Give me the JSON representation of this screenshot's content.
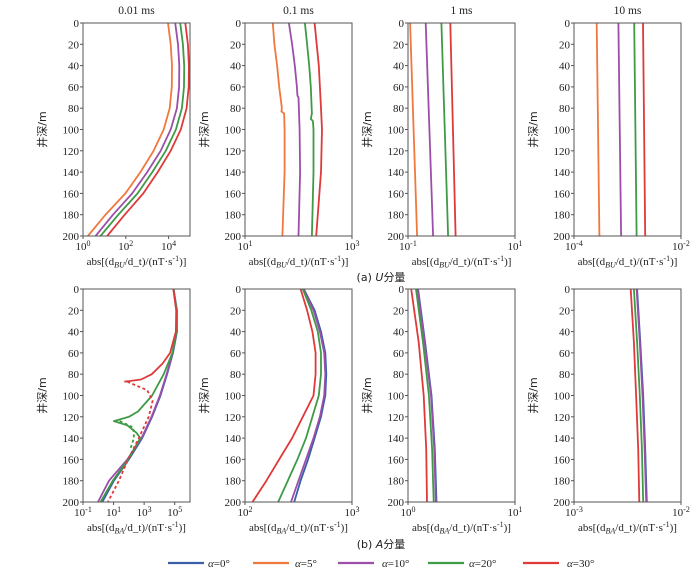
{
  "chart_data": {
    "type": "line",
    "captions": [
      "(a) _U_分量",
      "(b) _A_分量"
    ],
    "ylabel": "井深/m",
    "y_ticks": [
      "0",
      "20",
      "40",
      "60",
      "80",
      "100",
      "120",
      "140",
      "160",
      "180",
      "200"
    ],
    "ylim": [
      200,
      0
    ],
    "x_scale": "log",
    "legend": {
      "placement": "bottom-center",
      "entries": [
        {
          "key": "a0",
          "label": "α=0°"
        },
        {
          "key": "a5",
          "label": "α=5°"
        },
        {
          "key": "a10",
          "label": "α=10°"
        },
        {
          "key": "a20",
          "label": "α=20°"
        },
        {
          "key": "a30",
          "label": "α=30°"
        }
      ]
    },
    "colors": {
      "a0": "#3a5fa8",
      "a5": "#f0783c",
      "a10": "#9b4fa8",
      "a20": "#3f9a47",
      "a30": "#e0393a"
    },
    "panels": [
      {
        "id": "u-0.01",
        "row": 0,
        "col": 0,
        "title": "0.01 ms",
        "xlabel": "abs[(d_{BU}/d_t)/(nT·s^{-1})]",
        "xlim_log10": [
          0,
          5
        ],
        "x_ticks": [
          "10^{0}",
          "10^{2}",
          "10^{4}"
        ],
        "x_tick_log10": [
          0,
          2,
          4
        ],
        "series": [
          {
            "key": "a5",
            "depth": [
              0,
              20,
              40,
              60,
              80,
              100,
              120,
              140,
              160,
              180,
              200
            ],
            "log10": [
              3.97,
              4.1,
              4.16,
              4.15,
              4.05,
              3.77,
              3.3,
              2.68,
              1.98,
              1.05,
              0.23
            ]
          },
          {
            "key": "a10",
            "depth": [
              0,
              20,
              40,
              60,
              80,
              100,
              120,
              140,
              160,
              180,
              200
            ],
            "log10": [
              4.31,
              4.44,
              4.5,
              4.49,
              4.39,
              4.1,
              3.63,
              3.0,
              2.3,
              1.4,
              0.59
            ]
          },
          {
            "key": "a20",
            "depth": [
              0,
              20,
              40,
              60,
              80,
              100,
              120,
              140,
              160,
              180,
              200
            ],
            "log10": [
              4.54,
              4.67,
              4.73,
              4.72,
              4.62,
              4.34,
              3.87,
              3.24,
              2.55,
              1.65,
              0.82
            ]
          },
          {
            "key": "a30",
            "depth": [
              0,
              20,
              40,
              60,
              80,
              100,
              120,
              140,
              160,
              180,
              200
            ],
            "log10": [
              4.78,
              4.9,
              4.95,
              4.94,
              4.84,
              4.57,
              4.1,
              3.49,
              2.82,
              1.95,
              1.13
            ]
          }
        ]
      },
      {
        "id": "u-0.1",
        "row": 0,
        "col": 1,
        "title": "0.1 ms",
        "xlabel": "abs[(d_{BU}/d_t)/(nT·s^{-1})]",
        "xlim_log10": [
          1,
          3
        ],
        "x_ticks": [
          "10^{1}",
          "10^{3}"
        ],
        "x_tick_log10": [
          1,
          3
        ],
        "series": [
          {
            "key": "a5",
            "depth": [
              0,
              20,
              40,
              60,
              80,
              83,
              85,
              100,
              140,
              200
            ],
            "log10": [
              1.52,
              1.55,
              1.6,
              1.64,
              1.69,
              1.68,
              1.73,
              1.74,
              1.74,
              1.7
            ]
          },
          {
            "key": "a10",
            "depth": [
              0,
              20,
              40,
              60,
              68,
              70,
              100,
              140,
              200
            ],
            "log10": [
              1.82,
              1.88,
              1.93,
              1.97,
              1.98,
              2.0,
              2.02,
              2.03,
              2.0
            ]
          },
          {
            "key": "a20",
            "depth": [
              0,
              20,
              40,
              60,
              85,
              90,
              92,
              100,
              140,
              200
            ],
            "log10": [
              2.12,
              2.16,
              2.2,
              2.23,
              2.25,
              2.23,
              2.27,
              2.28,
              2.28,
              2.25
            ]
          },
          {
            "key": "a30",
            "depth": [
              0,
              20,
              40,
              60,
              80,
              100,
              140,
              200
            ],
            "log10": [
              2.3,
              2.34,
              2.38,
              2.4,
              2.42,
              2.44,
              2.42,
              2.33
            ]
          }
        ]
      },
      {
        "id": "u-1",
        "row": 0,
        "col": 2,
        "title": "1 ms",
        "xlabel": "abs[(d_{BU}/d_t)/(nT·s^{-1})]",
        "xlim_log10": [
          -1,
          1
        ],
        "x_ticks": [
          "10^{-1}",
          "10^{1}"
        ],
        "x_tick_log10": [
          -1,
          1
        ],
        "series": [
          {
            "key": "a5",
            "depth": [
              0,
              200
            ],
            "log10": [
              -0.96,
              -0.83
            ]
          },
          {
            "key": "a10",
            "depth": [
              0,
              200
            ],
            "log10": [
              -0.67,
              -0.53
            ]
          },
          {
            "key": "a20",
            "depth": [
              0,
              200
            ],
            "log10": [
              -0.375,
              -0.25
            ]
          },
          {
            "key": "a30",
            "depth": [
              0,
              200
            ],
            "log10": [
              -0.21,
              -0.11
            ]
          }
        ]
      },
      {
        "id": "u-10",
        "row": 0,
        "col": 3,
        "title": "10 ms",
        "xlabel": "abs[(d_{BU}/d_t)/(nT·s^{-1})]",
        "xlim_log10": [
          -4,
          -2
        ],
        "x_ticks": [
          "10^{-4}",
          "10^{-2}"
        ],
        "x_tick_log10": [
          -4,
          -2
        ],
        "series": [
          {
            "key": "a5",
            "depth": [
              0,
              200
            ],
            "log10": [
              -3.575,
              -3.525
            ]
          },
          {
            "key": "a10",
            "depth": [
              0,
              200
            ],
            "log10": [
              -3.17,
              -3.12
            ]
          },
          {
            "key": "a20",
            "depth": [
              0,
              200
            ],
            "log10": [
              -2.875,
              -2.83
            ]
          },
          {
            "key": "a30",
            "depth": [
              0,
              200
            ],
            "log10": [
              -2.71,
              -2.67
            ]
          }
        ]
      },
      {
        "id": "a-0.01",
        "row": 1,
        "col": 0,
        "title": "",
        "xlabel": "abs[(d_{BA}/d_t)/(nT·s^{-1})]",
        "xlim_log10": [
          -1,
          6
        ],
        "x_ticks": [
          "10^{-1}",
          "10^{1}",
          "10^{3}",
          "10^{5}"
        ],
        "x_tick_log10": [
          -1,
          1,
          3,
          5
        ],
        "series": [
          {
            "key": "a0",
            "depth": [
              0,
              20,
              40,
              60,
              80,
              100,
              120,
              140,
              160,
              180,
              200
            ],
            "log10": [
              4.93,
              5.15,
              5.15,
              4.89,
              4.5,
              4.07,
              3.52,
              2.87,
              2.0,
              1.02,
              0.26
            ]
          },
          {
            "key": "a10",
            "depth": [
              0,
              20,
              40,
              60,
              80,
              100,
              120,
              140,
              160,
              180,
              200
            ],
            "log10": [
              4.92,
              5.13,
              5.12,
              4.86,
              4.47,
              4.03,
              3.48,
              2.83,
              1.9,
              0.7,
              -0.02
            ]
          },
          {
            "key": "a20",
            "depth": [
              0,
              20,
              40,
              60,
              80,
              100,
              115,
              120,
              124,
              128,
              135,
              140,
              160,
              180,
              200
            ],
            "log10": [
              4.92,
              5.13,
              5.12,
              4.85,
              4.28,
              3.52,
              2.6,
              2.0,
              1.02,
              1.9,
              2.5,
              2.75,
              1.95,
              0.95,
              0.15
            ]
          },
          {
            "key": "a20",
            "dashed": true,
            "depth": [
              124,
              130,
              140,
              150
            ],
            "log10": [
              1.4,
              2.3,
              2.33,
              2.1
            ]
          },
          {
            "key": "a30",
            "depth": [
              0,
              20,
              40,
              60,
              70,
              80,
              85,
              87
            ],
            "log10": [
              4.91,
              5.1,
              5.08,
              4.7,
              4.2,
              3.5,
              2.8,
              1.7
            ]
          },
          {
            "key": "a30",
            "dashed": true,
            "depth": [
              87,
              95,
              105,
              120,
              140,
              160,
              180,
              200
            ],
            "log10": [
              1.9,
              3.2,
              3.55,
              3.3,
              2.65,
              1.95,
              1.35,
              0.63
            ]
          }
        ]
      },
      {
        "id": "a-0.1",
        "row": 1,
        "col": 1,
        "title": "",
        "xlabel": "abs[(d_{BA}/d_t)/(nT·s^{-1})]",
        "xlim_log10": [
          2,
          3
        ],
        "x_ticks": [
          "10^{2}",
          "10^{3}"
        ],
        "x_tick_log10": [
          2,
          3
        ],
        "series": [
          {
            "key": "a0",
            "depth": [
              0,
              20,
              40,
              60,
              80,
              100,
              120,
              140,
              160,
              180,
              200
            ],
            "log10": [
              2.55,
              2.65,
              2.71,
              2.75,
              2.76,
              2.75,
              2.71,
              2.65,
              2.59,
              2.52,
              2.46
            ]
          },
          {
            "key": "a10",
            "depth": [
              0,
              20,
              40,
              60,
              80,
              100,
              120,
              140,
              160,
              180,
              200
            ],
            "log10": [
              2.545,
              2.64,
              2.7,
              2.74,
              2.75,
              2.74,
              2.7,
              2.64,
              2.57,
              2.5,
              2.43
            ]
          },
          {
            "key": "a20",
            "depth": [
              0,
              20,
              40,
              60,
              80,
              100,
              120,
              140,
              160,
              180,
              200
            ],
            "log10": [
              2.54,
              2.62,
              2.68,
              2.71,
              2.71,
              2.69,
              2.63,
              2.57,
              2.49,
              2.4,
              2.31
            ]
          },
          {
            "key": "a30",
            "depth": [
              0,
              20,
              40,
              60,
              80,
              100,
              120,
              140,
              160,
              180,
              200
            ],
            "log10": [
              2.52,
              2.58,
              2.63,
              2.66,
              2.66,
              2.64,
              2.54,
              2.44,
              2.32,
              2.2,
              2.07
            ]
          }
        ]
      },
      {
        "id": "a-1",
        "row": 1,
        "col": 2,
        "title": "",
        "xlabel": "abs[(d_{BA}/d_t)/(nT·s^{-1})]",
        "xlim_log10": [
          0,
          1
        ],
        "x_ticks": [
          "10^{0}",
          "10^{1}"
        ],
        "x_tick_log10": [
          0,
          1
        ],
        "series": [
          {
            "key": "a0",
            "depth": [
              0,
              50,
              100,
              150,
              200
            ],
            "log10": [
              0.094,
              0.16,
              0.22,
              0.25,
              0.266
            ]
          },
          {
            "key": "a10",
            "depth": [
              0,
              50,
              100,
              150,
              200
            ],
            "log10": [
              0.09,
              0.155,
              0.215,
              0.245,
              0.26
            ]
          },
          {
            "key": "a20",
            "depth": [
              0,
              50,
              100,
              150,
              200
            ],
            "log10": [
              0.075,
              0.14,
              0.195,
              0.225,
              0.24
            ]
          },
          {
            "key": "a30",
            "depth": [
              0,
              50,
              100,
              150,
              200
            ],
            "log10": [
              0.03,
              0.1,
              0.147,
              0.17,
              0.178
            ]
          }
        ]
      },
      {
        "id": "a-10",
        "row": 1,
        "col": 3,
        "title": "",
        "xlabel": "abs[(d_{BA}/d_t)/(nT·s^{-1})]",
        "xlim_log10": [
          -3,
          -2
        ],
        "x_ticks": [
          "10^{-3}",
          "10^{-2}"
        ],
        "x_tick_log10": [
          -3,
          -2
        ],
        "series": [
          {
            "key": "a0",
            "depth": [
              0,
              50,
              100,
              150,
              200
            ],
            "log10": [
              -2.41,
              -2.38,
              -2.353,
              -2.335,
              -2.32
            ]
          },
          {
            "key": "a10",
            "depth": [
              0,
              50,
              100,
              150,
              200
            ],
            "log10": [
              -2.415,
              -2.385,
              -2.36,
              -2.34,
              -2.325
            ]
          },
          {
            "key": "a20",
            "depth": [
              0,
              50,
              100,
              150,
              200
            ],
            "log10": [
              -2.44,
              -2.41,
              -2.385,
              -2.365,
              -2.353
            ]
          },
          {
            "key": "a30",
            "depth": [
              0,
              50,
              100,
              150,
              200
            ],
            "log10": [
              -2.47,
              -2.44,
              -2.42,
              -2.4,
              -2.39
            ]
          }
        ]
      }
    ]
  }
}
